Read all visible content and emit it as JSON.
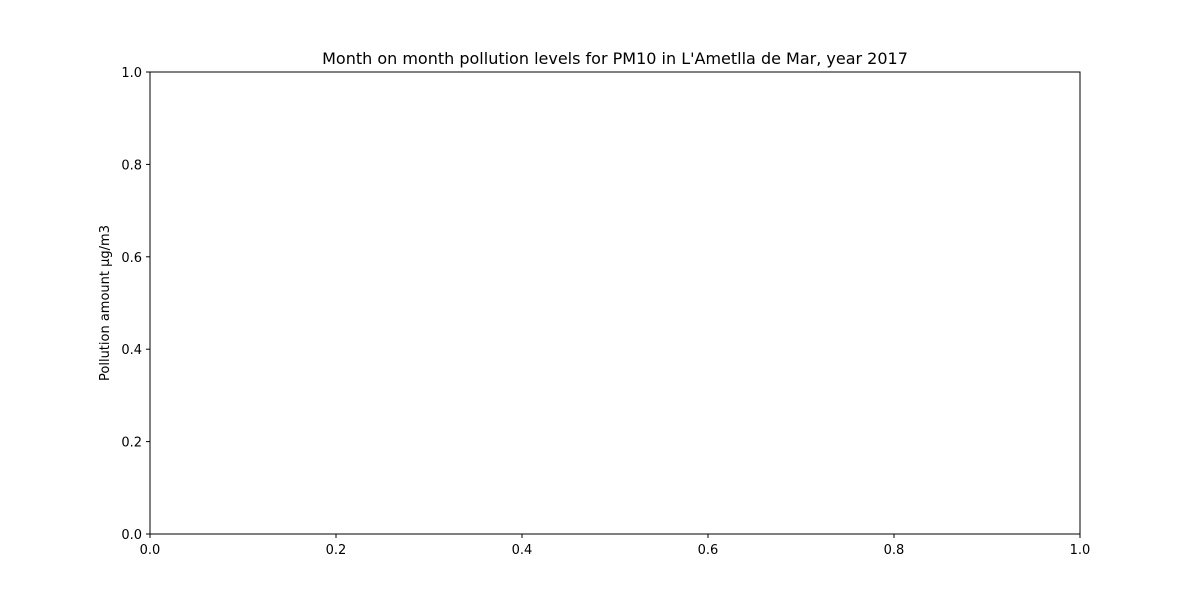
{
  "chart_data": {
    "type": "line",
    "title": "Month on month pollution levels for PM10 in L'Ametlla de Mar, year 2017",
    "xlabel": "",
    "ylabel": "Pollution amount µg/m3",
    "xlim": [
      0.0,
      1.0
    ],
    "ylim": [
      0.0,
      1.0
    ],
    "x_ticks": [
      "0.0",
      "0.2",
      "0.4",
      "0.6",
      "0.8",
      "1.0"
    ],
    "y_ticks": [
      "0.0",
      "0.2",
      "0.4",
      "0.6",
      "0.8",
      "1.0"
    ],
    "grid": false,
    "series": []
  }
}
